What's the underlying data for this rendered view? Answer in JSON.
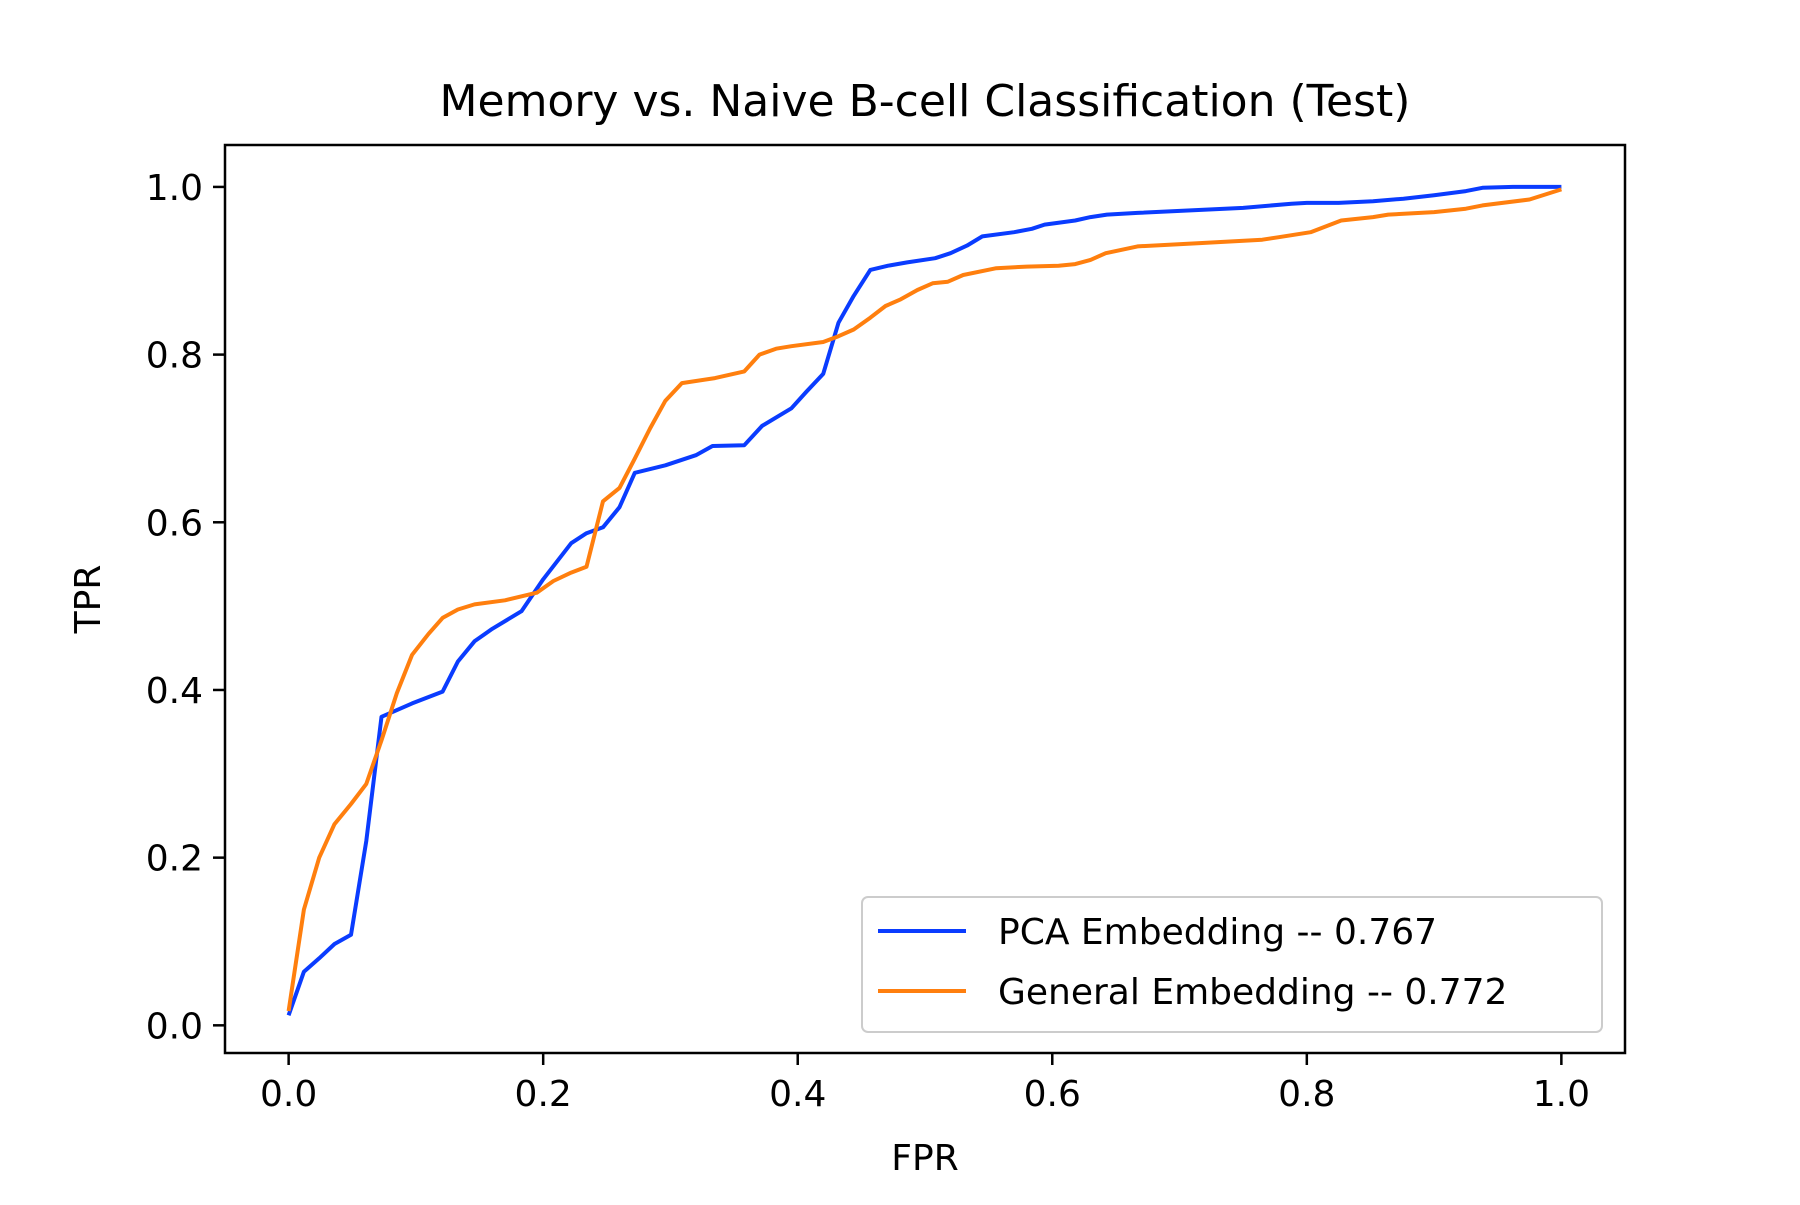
{
  "chart_data": {
    "type": "line",
    "title": "Memory vs. Naive B-cell Classification (Test)",
    "xlabel": "FPR",
    "ylabel": "TPR",
    "xlim": [
      -0.05,
      1.05
    ],
    "ylim": [
      -0.033,
      1.05
    ],
    "xticks": [
      0.0,
      0.2,
      0.4,
      0.6,
      0.8,
      1.0
    ],
    "xtick_labels": [
      "0.0",
      "0.2",
      "0.4",
      "0.6",
      "0.8",
      "1.0"
    ],
    "yticks": [
      0.0,
      0.2,
      0.4,
      0.6,
      0.8,
      1.0
    ],
    "ytick_labels": [
      "0.0",
      "0.2",
      "0.4",
      "0.6",
      "0.8",
      "1.0"
    ],
    "grid": false,
    "legend_position": "lower-right",
    "series": [
      {
        "name": "PCA Embedding -- 0.767",
        "color": "#0a3cff",
        "x": [
          0.0,
          0.012,
          0.024,
          0.036,
          0.049,
          0.061,
          0.073,
          0.097,
          0.121,
          0.133,
          0.146,
          0.16,
          0.183,
          0.2,
          0.222,
          0.234,
          0.247,
          0.26,
          0.272,
          0.296,
          0.32,
          0.333,
          0.358,
          0.372,
          0.395,
          0.407,
          0.42,
          0.432,
          0.444,
          0.457,
          0.471,
          0.486,
          0.508,
          0.52,
          0.533,
          0.545,
          0.57,
          0.584,
          0.594,
          0.618,
          0.63,
          0.643,
          0.667,
          0.75,
          0.788,
          0.8,
          0.825,
          0.852,
          0.876,
          0.9,
          0.925,
          0.938,
          0.962,
          1.0
        ],
        "y": [
          0.012,
          0.064,
          0.08,
          0.097,
          0.108,
          0.22,
          0.368,
          0.384,
          0.398,
          0.434,
          0.458,
          0.473,
          0.494,
          0.532,
          0.575,
          0.587,
          0.594,
          0.618,
          0.659,
          0.668,
          0.68,
          0.691,
          0.692,
          0.715,
          0.736,
          0.756,
          0.777,
          0.838,
          0.87,
          0.901,
          0.906,
          0.91,
          0.915,
          0.921,
          0.93,
          0.941,
          0.946,
          0.95,
          0.955,
          0.96,
          0.964,
          0.967,
          0.969,
          0.975,
          0.98,
          0.981,
          0.981,
          0.983,
          0.986,
          0.99,
          0.995,
          0.999,
          1.0,
          1.0
        ]
      },
      {
        "name": "General Embedding -- 0.772",
        "color": "#ff7f0e",
        "x": [
          0.0,
          0.012,
          0.024,
          0.036,
          0.049,
          0.061,
          0.073,
          0.085,
          0.097,
          0.11,
          0.121,
          0.133,
          0.146,
          0.17,
          0.195,
          0.208,
          0.222,
          0.234,
          0.247,
          0.26,
          0.272,
          0.284,
          0.296,
          0.309,
          0.335,
          0.358,
          0.37,
          0.383,
          0.395,
          0.42,
          0.432,
          0.444,
          0.457,
          0.469,
          0.481,
          0.494,
          0.506,
          0.518,
          0.53,
          0.556,
          0.58,
          0.605,
          0.618,
          0.63,
          0.642,
          0.667,
          0.716,
          0.765,
          0.778,
          0.803,
          0.827,
          0.852,
          0.864,
          0.9,
          0.925,
          0.938,
          0.975,
          1.0
        ],
        "y": [
          0.017,
          0.138,
          0.2,
          0.24,
          0.264,
          0.288,
          0.34,
          0.396,
          0.442,
          0.467,
          0.486,
          0.496,
          0.502,
          0.507,
          0.516,
          0.53,
          0.54,
          0.547,
          0.625,
          0.641,
          0.676,
          0.712,
          0.745,
          0.766,
          0.772,
          0.78,
          0.8,
          0.807,
          0.81,
          0.815,
          0.822,
          0.83,
          0.844,
          0.858,
          0.866,
          0.877,
          0.885,
          0.887,
          0.895,
          0.903,
          0.905,
          0.906,
          0.908,
          0.913,
          0.921,
          0.929,
          0.933,
          0.937,
          0.94,
          0.946,
          0.96,
          0.964,
          0.967,
          0.97,
          0.974,
          0.978,
          0.985,
          0.997
        ]
      }
    ]
  }
}
